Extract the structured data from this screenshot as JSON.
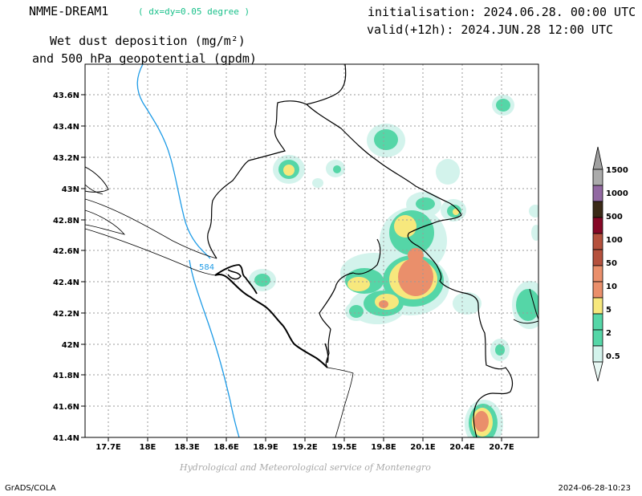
{
  "header": {
    "model": "NMME-DREAM1",
    "resolution": "( dx=dy=0.05 degree )",
    "title_line1": "Wet dust deposition (mg/m²)",
    "title_line2": "and 500 hPa geopotential (gpdm)",
    "initialisation": "initialisation: 2024.06.28. 00:00 UTC",
    "valid": "valid(+12h): 2024.JUN.28 12:00 UTC"
  },
  "map": {
    "lat_labels": [
      "43.6N",
      "43.4N",
      "43.2N",
      "43N",
      "42.8N",
      "42.6N",
      "42.4N",
      "42.2N",
      "42N",
      "41.8N",
      "41.6N",
      "41.4N"
    ],
    "lon_labels": [
      "17.7E",
      "18E",
      "18.3E",
      "18.6E",
      "18.9E",
      "19.2E",
      "19.5E",
      "19.8E",
      "20.1E",
      "20.4E",
      "20.7E"
    ],
    "contour_label": "584",
    "colors": {
      "geopotential_line": "#1e9be6",
      "grid": "#9a9a9a",
      "border": "#000000"
    }
  },
  "colorbar": {
    "levels": [
      "1500",
      "1000",
      "500",
      "100",
      "50",
      "10",
      "5",
      "2",
      "0.5"
    ],
    "colors": [
      "#ababab",
      "#9269a2",
      "#3b2a17",
      "#860826",
      "#b5513d",
      "#ea8f6b",
      "#f7e87d",
      "#55d6a7",
      "#d3f3ec"
    ],
    "tail_colors": [
      "#a0a0a0",
      "#e8f8f4"
    ]
  },
  "footer": {
    "credit": "Hydrological and Meteorological service of Montenegro",
    "left": "GrADS/COLA",
    "right": "2024-06-28-10:23"
  }
}
